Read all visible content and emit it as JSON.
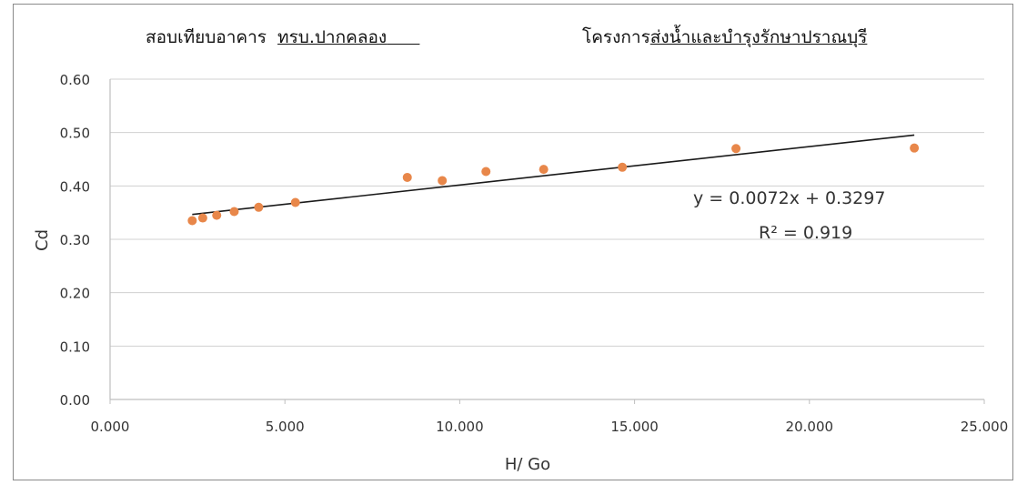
{
  "chart_data": {
    "type": "scatter",
    "title_left_prefix": "สอบเทียบอาคาร",
    "title_left_underlined": "ทรบ.ปากคลอง",
    "title_right_prefix": "โครงการ",
    "title_right_underlined": "ส่งน้ำและบำรุงรักษาปราณบุรี",
    "xlabel": "H/ Go",
    "ylabel": "Cd",
    "xlim": [
      0,
      25
    ],
    "ylim": [
      0,
      0.6
    ],
    "x_ticks": [
      0,
      5,
      10,
      15,
      20,
      25
    ],
    "x_tick_labels": [
      "0.000",
      "5.000",
      "10.000",
      "15.000",
      "20.000",
      "25.000"
    ],
    "y_ticks": [
      0,
      0.1,
      0.2,
      0.3,
      0.4,
      0.5,
      0.6
    ],
    "y_tick_labels": [
      "0.00",
      "0.10",
      "0.20",
      "0.30",
      "0.40",
      "0.50",
      "0.60"
    ],
    "grid": "horizontal",
    "series": [
      {
        "x": [
          2.35,
          2.65,
          3.05,
          3.55,
          4.25,
          5.3,
          8.5,
          9.5,
          10.75,
          12.4,
          14.65,
          17.9,
          23.0
        ],
        "y": [
          0.335,
          0.34,
          0.345,
          0.352,
          0.36,
          0.369,
          0.416,
          0.41,
          0.427,
          0.431,
          0.435,
          0.47,
          0.471
        ]
      }
    ],
    "trendline": {
      "slope": 0.0072,
      "intercept": 0.3297,
      "x_range": [
        2.35,
        23.0
      ],
      "equation_label": "y = 0.0072x + 0.3297",
      "r2_label": "R² = 0.919"
    },
    "colors": {
      "marker": "#E8874A",
      "trendline": "#1a1a1a",
      "grid": "#d0d0d0",
      "axis": "#bfbfbf",
      "text": "#333333"
    }
  }
}
